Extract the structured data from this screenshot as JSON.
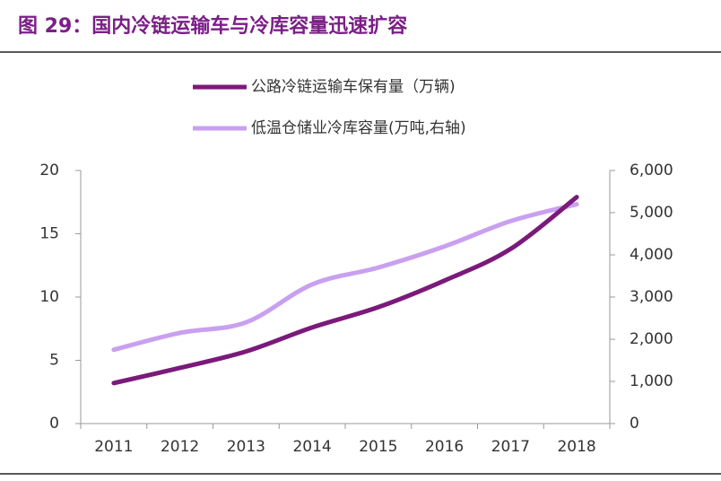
{
  "chart_data": {
    "type": "line",
    "title": "图 29：国内冷链运输车与冷库容量迅速扩容",
    "categories": [
      "2011",
      "2012",
      "2013",
      "2014",
      "2015",
      "2016",
      "2017",
      "2018"
    ],
    "series": [
      {
        "name": "公路冷链运输车保有量（万辆)",
        "color": "#7a1a7a",
        "values": [
          3.2,
          4.4,
          5.7,
          7.6,
          9.2,
          11.3,
          13.8,
          17.9
        ]
      },
      {
        "name": "低温仓储业冷库容量(万吨,右轴)",
        "color": "#c9a0f0",
        "axis": "y2",
        "values": [
          1750,
          2150,
          2400,
          3300,
          3700,
          4200,
          4800,
          5200
        ]
      }
    ],
    "ylim": [
      0,
      20
    ],
    "yticks": [
      0,
      5,
      10,
      15,
      20
    ],
    "y2lim": [
      0,
      6000
    ],
    "y2ticks": [
      0,
      {
        "value": 1000,
        "label": "1,000"
      },
      {
        "value": 2000,
        "label": "2,000"
      },
      {
        "value": 3000,
        "label": "3,000"
      },
      {
        "value": 4000,
        "label": "4,000"
      },
      {
        "value": 5000,
        "label": "5,000"
      },
      {
        "value": 6000,
        "label": "6,000"
      }
    ]
  }
}
